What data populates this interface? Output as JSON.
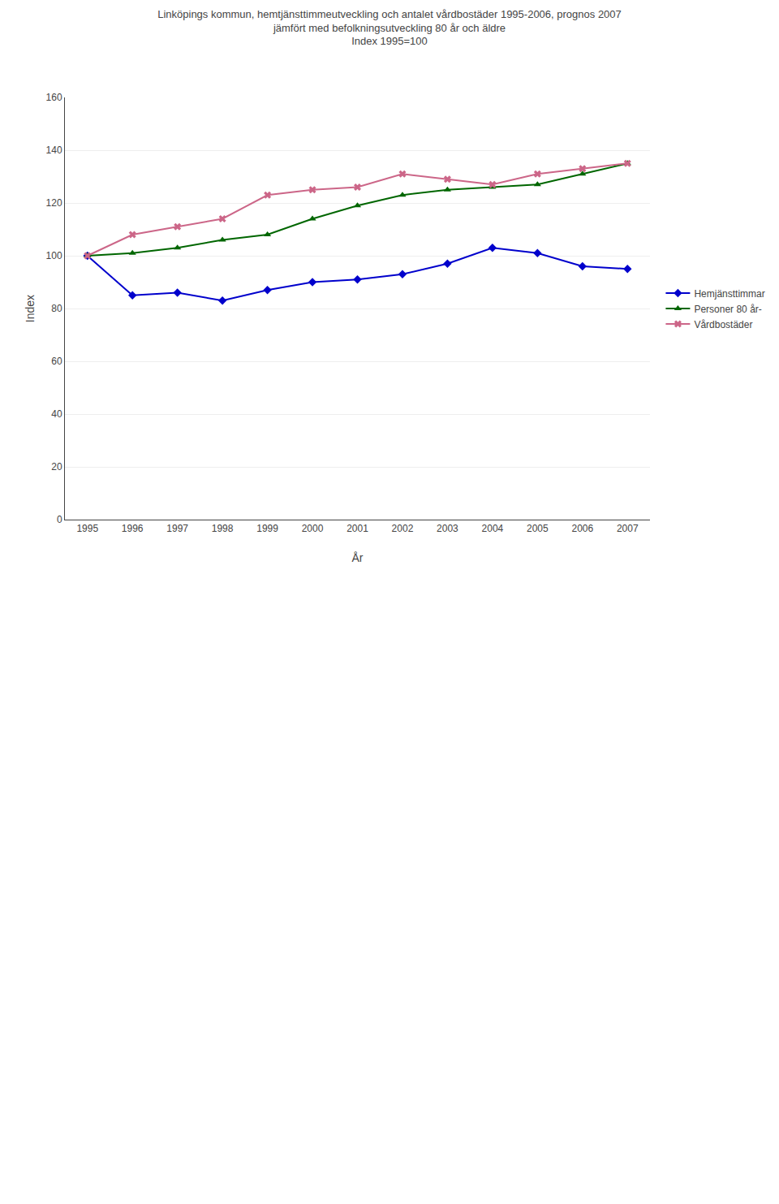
{
  "chart_data": {
    "type": "line",
    "title": "Linköpings kommun, hemtjänsttimmeutveckling och antalet vårdbostäder 1995-2006, prognos 2007\njämfört med befolkningsutveckling 80 år och äldre\nIndex 1995=100",
    "x_label": "År",
    "y_label": "Index",
    "x": [
      1995,
      1996,
      1997,
      1998,
      1999,
      2000,
      2001,
      2002,
      2003,
      2004,
      2005,
      2006,
      2007
    ],
    "series": [
      {
        "name": "Hemjänsttimmar",
        "color": "#0000CC",
        "marker": "diamond",
        "values": [
          100,
          85,
          86,
          83,
          87,
          90,
          91,
          93,
          97,
          103,
          101,
          96,
          95
        ]
      },
      {
        "name": "Personer 80 år-",
        "color": "#006600",
        "marker": "triangle-up",
        "values": [
          100,
          101,
          103,
          106,
          108,
          114,
          119,
          123,
          125,
          126,
          127,
          131,
          135
        ]
      },
      {
        "name": "Vårdbostäder",
        "color": "#CC6688",
        "marker": "x",
        "values": [
          100,
          108,
          111,
          114,
          123,
          125,
          126,
          131,
          129,
          127,
          131,
          133,
          135
        ]
      }
    ],
    "xlim": [
      1994.5,
      2007.5
    ],
    "xticks": [
      1995,
      1996,
      1997,
      1998,
      1999,
      2000,
      2001,
      2002,
      2003,
      2004,
      2005,
      2006,
      2007
    ],
    "ylim": [
      0,
      160
    ],
    "yticks": [
      0,
      20,
      40,
      60,
      80,
      100,
      120,
      140,
      160
    ],
    "grid": true,
    "legend": "right"
  }
}
